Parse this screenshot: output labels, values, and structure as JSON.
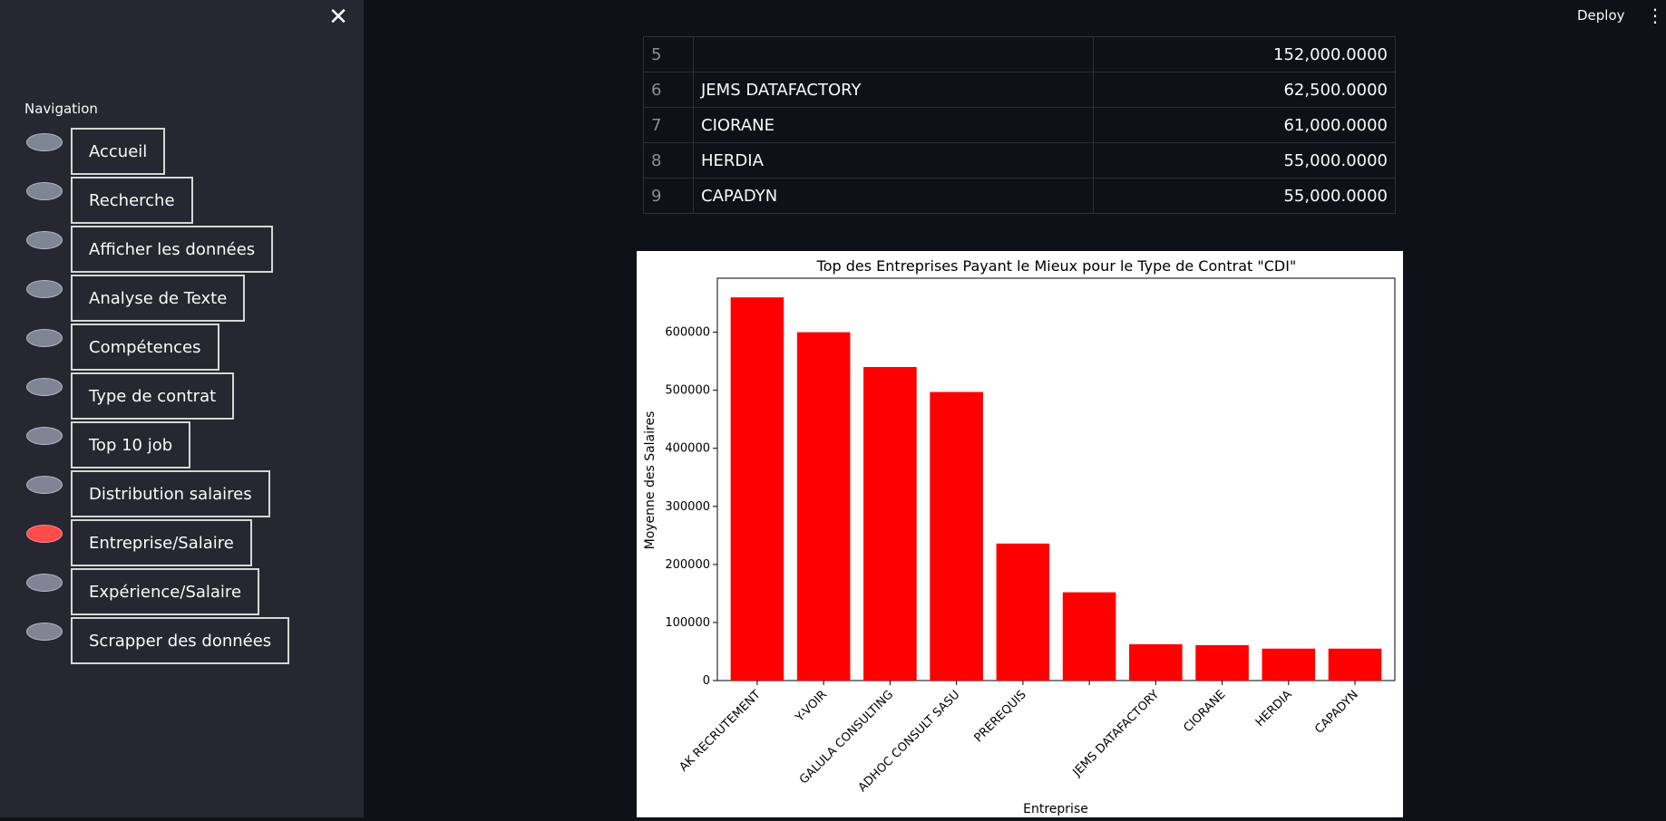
{
  "sidebar": {
    "close_icon": "close-icon",
    "nav_label": "Navigation",
    "items": [
      {
        "label": "Accueil",
        "selected": false
      },
      {
        "label": "Recherche",
        "selected": false
      },
      {
        "label": "Afficher les données",
        "selected": false
      },
      {
        "label": "Analyse de Texte",
        "selected": false
      },
      {
        "label": "Compétences",
        "selected": false
      },
      {
        "label": "Type de contrat",
        "selected": false
      },
      {
        "label": "Top 10 job",
        "selected": false
      },
      {
        "label": "Distribution salaires",
        "selected": false
      },
      {
        "label": "Entreprise/Salaire",
        "selected": true
      },
      {
        "label": "Expérience/Salaire",
        "selected": false
      },
      {
        "label": "Scrapper des données",
        "selected": false
      }
    ]
  },
  "header": {
    "deploy_label": "Deploy",
    "menu_icon": "kebab-menu-icon"
  },
  "table": {
    "rows": [
      {
        "index": "5",
        "name": "",
        "value": "152,000.0000"
      },
      {
        "index": "6",
        "name": "JEMS DATAFACTORY",
        "value": "62,500.0000"
      },
      {
        "index": "7",
        "name": "CIORANE",
        "value": "61,000.0000"
      },
      {
        "index": "8",
        "name": "HERDIA",
        "value": "55,000.0000"
      },
      {
        "index": "9",
        "name": "CAPADYN",
        "value": "55,000.0000"
      }
    ]
  },
  "chart_data": {
    "type": "bar",
    "title": "Top des Entreprises Payant le Mieux pour le Type de Contrat \"CDI\"",
    "xlabel": "Entreprise",
    "ylabel": "Moyenne des Salaires",
    "categories": [
      "AK RECRUTEMENT",
      "Y-VOIR",
      "GALULA CONSULTING",
      "ADHOC CONSULT SASU",
      "PREREQUIS",
      "",
      "JEMS DATAFACTORY",
      "CIORANE",
      "HERDIA",
      "CAPADYN"
    ],
    "values": [
      660000,
      600000,
      540000,
      497000,
      236000,
      152000,
      62500,
      61000,
      55000,
      55000
    ],
    "ylim": [
      0,
      693000
    ],
    "yticks": [
      0,
      100000,
      200000,
      300000,
      400000,
      500000,
      600000
    ],
    "bar_color": "#ff0000",
    "grid": false
  }
}
